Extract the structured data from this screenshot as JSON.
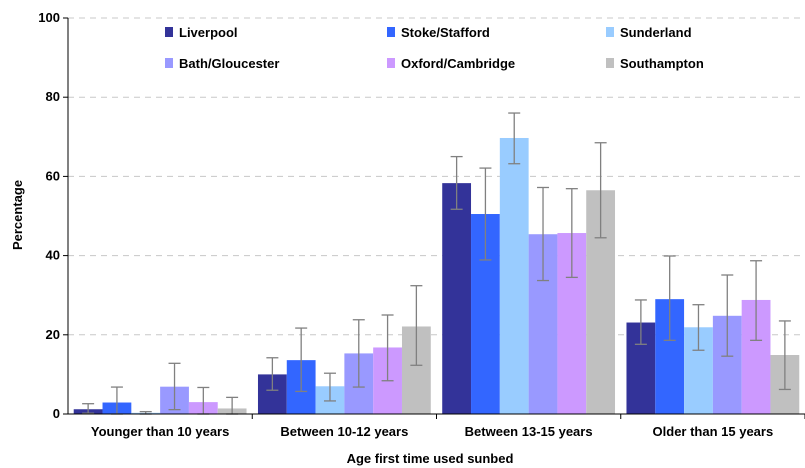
{
  "chart_data": {
    "type": "bar",
    "title": "",
    "xlabel": "Age first time used sunbed",
    "ylabel": "Percentage",
    "ylim": [
      0,
      100
    ],
    "yticks": [
      0,
      20,
      40,
      60,
      80,
      100
    ],
    "grid": true,
    "legend_position": "top",
    "error_bars": true,
    "categories": [
      "Younger than 10 years",
      "Between 10-12 years",
      "Between 13-15 years",
      "Older than 15 years"
    ],
    "series": [
      {
        "name": "Liverpool",
        "color": "#333399",
        "values": [
          1.2,
          10.0,
          58.3,
          23.1
        ],
        "errors": [
          [
            0.2,
            2.6
          ],
          [
            6.0,
            14.2
          ],
          [
            51.7,
            65.0
          ],
          [
            17.6,
            28.8
          ]
        ]
      },
      {
        "name": "Stoke/Stafford",
        "color": "#3366FF",
        "values": [
          2.9,
          13.6,
          50.5,
          29.0
        ],
        "errors": [
          [
            0.0,
            6.8
          ],
          [
            5.7,
            21.7
          ],
          [
            38.9,
            62.1
          ],
          [
            18.6,
            39.9
          ]
        ]
      },
      {
        "name": "Sunderland",
        "color": "#99CCFF",
        "values": [
          0.3,
          7.0,
          69.7,
          21.9
        ],
        "errors": [
          [
            0.0,
            0.6
          ],
          [
            3.3,
            10.3
          ],
          [
            63.2,
            76.0
          ],
          [
            16.1,
            27.6
          ]
        ]
      },
      {
        "name": "Bath/Gloucester",
        "color": "#9999FF",
        "values": [
          6.9,
          15.3,
          45.4,
          24.8
        ],
        "errors": [
          [
            1.1,
            12.8
          ],
          [
            6.8,
            23.8
          ],
          [
            33.7,
            57.2
          ],
          [
            14.6,
            35.1
          ]
        ]
      },
      {
        "name": "Oxford/Cambridge",
        "color": "#CC99FF",
        "values": [
          3.0,
          16.8,
          45.7,
          28.8
        ],
        "errors": [
          [
            0.0,
            6.7
          ],
          [
            8.4,
            25.0
          ],
          [
            34.5,
            56.9
          ],
          [
            18.6,
            38.7
          ]
        ]
      },
      {
        "name": "Southampton",
        "color": "#C0C0C0",
        "values": [
          1.4,
          22.1,
          56.5,
          14.9
        ],
        "errors": [
          [
            0.0,
            4.2
          ],
          [
            12.3,
            32.4
          ],
          [
            44.5,
            68.5
          ],
          [
            6.2,
            23.5
          ]
        ]
      }
    ]
  }
}
